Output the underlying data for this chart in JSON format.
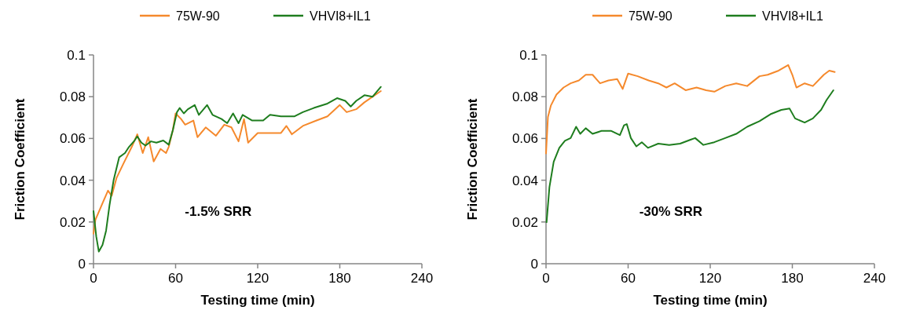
{
  "chart_data": [
    {
      "type": "line",
      "xlabel": "Testing time (min)",
      "ylabel": "Friction Coefficient",
      "xlim": [
        0,
        240
      ],
      "xticks": [
        0,
        60,
        120,
        180,
        240
      ],
      "ylim": [
        0,
        0.1
      ],
      "yticks": [
        0,
        0.02,
        0.04,
        0.06,
        0.08,
        0.1
      ],
      "grid": false,
      "legend": "top",
      "marker": "none",
      "annotations": [
        "-1.5% SRR"
      ],
      "series": [
        {
          "name": "75W-90",
          "color": "#f5892c",
          "x": [
            0,
            1.4,
            6.6,
            10.6,
            13.3,
            16.8,
            21.9,
            28,
            32,
            36,
            40,
            44,
            49,
            53,
            55,
            58,
            60,
            64,
            67,
            73,
            76,
            82,
            89.5,
            95.6,
            100.8,
            106,
            110,
            113,
            120,
            128,
            137,
            141,
            145,
            153,
            163,
            171,
            180,
            185,
            192,
            198,
            210
          ],
          "values": [
            0.0144,
            0.021,
            0.029,
            0.035,
            0.0325,
            0.041,
            0.048,
            0.056,
            0.062,
            0.053,
            0.0606,
            0.049,
            0.055,
            0.053,
            0.056,
            0.064,
            0.072,
            0.0693,
            0.0666,
            0.0686,
            0.0606,
            0.0653,
            0.0613,
            0.0666,
            0.0653,
            0.0586,
            0.0693,
            0.058,
            0.0626,
            0.0626,
            0.0626,
            0.066,
            0.062,
            0.066,
            0.0686,
            0.0706,
            0.076,
            0.0726,
            0.074,
            0.0773,
            0.0827
          ]
        },
        {
          "name": "VHVI8+IL1",
          "color": "#1e7d1e",
          "x": [
            0,
            2,
            3.9,
            6.6,
            9.2,
            11.7,
            14.7,
            18.8,
            23,
            26,
            30,
            32,
            35,
            38,
            42,
            46,
            51,
            55,
            58,
            61,
            63,
            66,
            69,
            74,
            77,
            83,
            87,
            93.6,
            97.7,
            102,
            106,
            109,
            116,
            124,
            129,
            137,
            147,
            153,
            161,
            171,
            178,
            184,
            188,
            192,
            198,
            204,
            210
          ],
          "values": [
            0.0252,
            0.0131,
            0.0058,
            0.009,
            0.0158,
            0.028,
            0.04,
            0.051,
            0.053,
            0.056,
            0.059,
            0.061,
            0.058,
            0.0566,
            0.0586,
            0.058,
            0.059,
            0.057,
            0.064,
            0.0726,
            0.0746,
            0.072,
            0.074,
            0.076,
            0.0713,
            0.076,
            0.0713,
            0.0693,
            0.0673,
            0.072,
            0.0673,
            0.0713,
            0.0686,
            0.0686,
            0.0713,
            0.0706,
            0.0706,
            0.0726,
            0.0746,
            0.0767,
            0.0793,
            0.078,
            0.0753,
            0.078,
            0.0807,
            0.08,
            0.0847
          ]
        }
      ]
    },
    {
      "type": "line",
      "xlabel": "Testing time (min)",
      "ylabel": "Friction Coefficient",
      "xlim": [
        0,
        240
      ],
      "xticks": [
        0,
        60,
        120,
        180,
        240
      ],
      "ylim": [
        0,
        0.1
      ],
      "yticks": [
        0,
        0.02,
        0.04,
        0.06,
        0.08,
        0.1
      ],
      "grid": false,
      "legend": "top",
      "marker": "none",
      "annotations": [
        "-30% SRR"
      ],
      "series": [
        {
          "name": "75W-90",
          "color": "#f5892c",
          "x": [
            0,
            1.4,
            3.5,
            7.6,
            12.8,
            18,
            24,
            29,
            34,
            39.5,
            45.6,
            52,
            56,
            60,
            67,
            75,
            82,
            88,
            94,
            102,
            110,
            117,
            123,
            131,
            139,
            147,
            156,
            162,
            170,
            177,
            180,
            183,
            189,
            195,
            203,
            207,
            211
          ],
          "values": [
            0.0528,
            0.0703,
            0.0757,
            0.081,
            0.0844,
            0.0864,
            0.0878,
            0.0905,
            0.0905,
            0.0864,
            0.0878,
            0.0884,
            0.0837,
            0.0911,
            0.0898,
            0.0878,
            0.0864,
            0.0844,
            0.0864,
            0.0831,
            0.0844,
            0.0831,
            0.0824,
            0.0851,
            0.0864,
            0.0851,
            0.0898,
            0.0905,
            0.0925,
            0.0952,
            0.0905,
            0.0844,
            0.0864,
            0.0851,
            0.0905,
            0.0925,
            0.0918
          ]
        },
        {
          "name": "VHVI8+IL1",
          "color": "#1e7d1e",
          "x": [
            0.4,
            2.5,
            5.6,
            9.7,
            13.8,
            18,
            22,
            25,
            29,
            34,
            40.5,
            47.7,
            54,
            57,
            59,
            62,
            66,
            70,
            74.5,
            82,
            90,
            98,
            106,
            109,
            115,
            123,
            131,
            139,
            147,
            156,
            164,
            172,
            178,
            182,
            189,
            195,
            201,
            205,
            210
          ],
          "values": [
            0.0199,
            0.0367,
            0.0488,
            0.0555,
            0.0589,
            0.0602,
            0.0656,
            0.0622,
            0.0649,
            0.0622,
            0.0636,
            0.0636,
            0.0616,
            0.0663,
            0.0669,
            0.0602,
            0.0562,
            0.0582,
            0.0555,
            0.0575,
            0.0569,
            0.0575,
            0.0595,
            0.0602,
            0.0569,
            0.0582,
            0.0602,
            0.0622,
            0.0656,
            0.0683,
            0.0716,
            0.0737,
            0.0743,
            0.0696,
            0.0676,
            0.0696,
            0.0737,
            0.0784,
            0.0831
          ]
        }
      ]
    }
  ]
}
